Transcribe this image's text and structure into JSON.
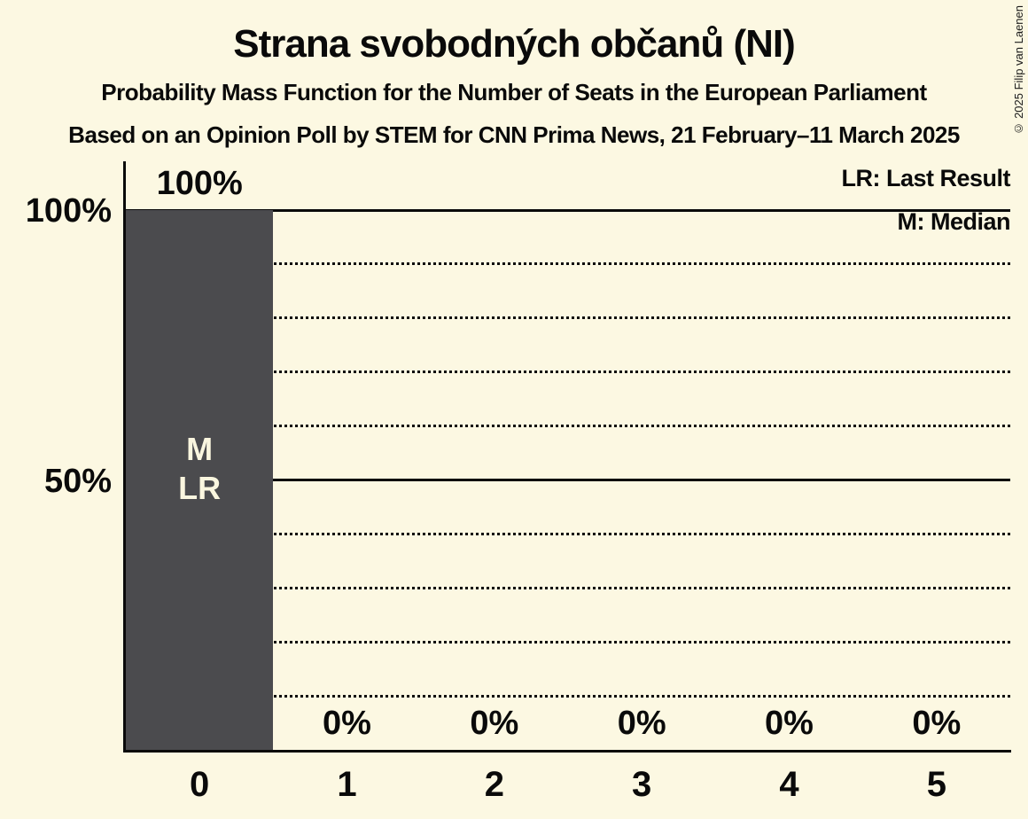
{
  "title": "Strana svobodných občanů (NI)",
  "subtitle": "Probability Mass Function for the Number of Seats in the European Parliament",
  "source": "Based on an Opinion Poll by STEM for CNN Prima News, 21 February–11 March 2025",
  "copyright": "© 2025 Filip van Laenen",
  "legend": {
    "last_result": "LR: Last Result",
    "median": "M: Median"
  },
  "y_axis_labels": {
    "p100": "100%",
    "p50": "50%"
  },
  "chart_data": {
    "type": "bar",
    "title": "Strana svobodných občanů (NI)",
    "subtitle": "Probability Mass Function for the Number of Seats in the European Parliament",
    "source": "Based on an Opinion Poll by STEM for CNN Prima News, 21 February–11 March 2025",
    "categories": [
      "0",
      "1",
      "2",
      "3",
      "4",
      "5"
    ],
    "values": [
      100,
      0,
      0,
      0,
      0,
      0
    ],
    "value_labels": [
      "100%",
      "0%",
      "0%",
      "0%",
      "0%",
      "0%"
    ],
    "ylim": [
      0,
      100
    ],
    "y_tick_values": [
      100,
      50
    ],
    "y_tick_labels": [
      "100%",
      "50%"
    ],
    "gridlines_solid": [
      100,
      50
    ],
    "gridlines_dotted": [
      90,
      80,
      70,
      60,
      40,
      30,
      20,
      10
    ],
    "grid": true,
    "legend_position": "top-right",
    "legend_entries": [
      "LR: Last Result",
      "M: Median"
    ],
    "median_category": "0",
    "last_result_category": "0",
    "bar_inner_labels": [
      "M",
      "LR"
    ],
    "colors": {
      "background": "#FCF8E2",
      "bar": "#4B4B4E",
      "text": "#0A0A0A",
      "bar_inner_text": "#FAF6DF"
    }
  }
}
